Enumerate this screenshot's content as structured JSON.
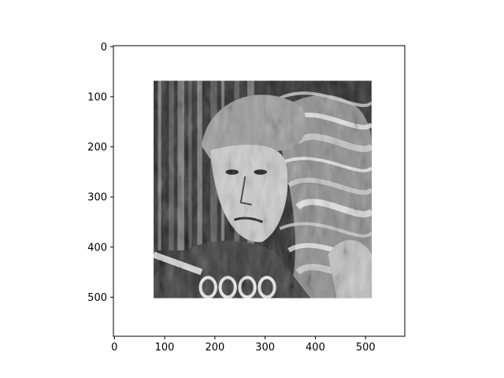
{
  "chart_data": {
    "type": "image",
    "title": "",
    "xlabel": "",
    "ylabel": "",
    "xlim": [
      -2,
      578
    ],
    "ylim": [
      578,
      -2
    ],
    "y_axis_inverted": true,
    "xticks": [
      0,
      100,
      200,
      300,
      400,
      500
    ],
    "yticks": [
      0,
      100,
      200,
      300,
      400,
      500
    ],
    "xtick_labels": [
      "0",
      "100",
      "200",
      "300",
      "400",
      "500"
    ],
    "ytick_labels": [
      "0",
      "100",
      "200",
      "300",
      "400",
      "500"
    ],
    "grid": false,
    "image": {
      "extent_x": [
        78,
        512
      ],
      "extent_y": [
        68,
        502
      ],
      "colormap": "grayscale",
      "content": "oil-painting style grayscale portrait of a man with swirling smoke"
    }
  }
}
